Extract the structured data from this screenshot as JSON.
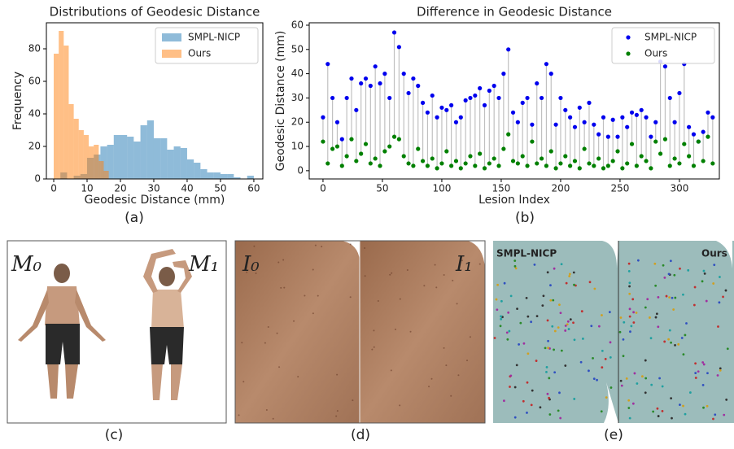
{
  "chart_data": [
    {
      "type": "histogram",
      "title": "Distributions of Geodesic Distance",
      "xlabel": "Geodesic Distance (mm)",
      "ylabel": "Frequency",
      "xlim": [
        -2.2,
        62.7
      ],
      "ylim": [
        0,
        96
      ],
      "xticks": [
        0,
        10,
        20,
        30,
        40,
        50,
        60
      ],
      "yticks": [
        0,
        20,
        40,
        60,
        80
      ],
      "legend": "upper right",
      "series": [
        {
          "name": "SMPL-NICP",
          "color": "#1f77b4",
          "bins": [
            2,
            4,
            6,
            8,
            10,
            12,
            14,
            16,
            18,
            20,
            22,
            24,
            26,
            28,
            30,
            32,
            34,
            36,
            38,
            40,
            42,
            44,
            46,
            48,
            50,
            52,
            54,
            56,
            58,
            60
          ],
          "values": [
            4,
            0,
            2,
            3,
            13,
            15,
            20,
            21,
            27,
            27,
            26,
            23,
            33,
            36,
            25,
            25,
            18,
            20,
            19,
            12,
            10,
            6,
            4,
            4,
            3,
            3,
            1,
            0,
            2
          ]
        },
        {
          "name": "Ours",
          "color": "#ff7f0e",
          "bins": [
            0,
            1.5,
            3,
            4.5,
            6,
            7.5,
            9,
            10.5,
            12,
            13.5,
            15,
            16.5
          ],
          "values": [
            77,
            91,
            82,
            46,
            37,
            30,
            27,
            20,
            21,
            11,
            5
          ]
        }
      ]
    },
    {
      "type": "scatter",
      "title": "Difference in Geodesic Distance",
      "xlabel": "Lesion Index",
      "ylabel": "Geodesic Distance (mm)",
      "xlim": [
        -11.6,
        333.6
      ],
      "ylim": [
        -3.4,
        61
      ],
      "xticks": [
        0,
        50,
        100,
        150,
        200,
        250,
        300
      ],
      "yticks": [
        0,
        10,
        20,
        30,
        40,
        50,
        60
      ],
      "legend": "upper right",
      "stem_color": "#c0c0c0",
      "x": [
        0,
        4,
        8,
        12,
        16,
        20,
        24,
        28,
        32,
        36,
        40,
        44,
        48,
        52,
        56,
        60,
        64,
        68,
        72,
        76,
        80,
        84,
        88,
        92,
        96,
        100,
        104,
        108,
        112,
        116,
        120,
        124,
        128,
        132,
        136,
        140,
        144,
        148,
        152,
        156,
        160,
        164,
        168,
        172,
        176,
        180,
        184,
        188,
        192,
        196,
        200,
        204,
        208,
        212,
        216,
        220,
        224,
        228,
        232,
        236,
        240,
        244,
        248,
        252,
        256,
        260,
        264,
        268,
        272,
        276,
        280,
        284,
        288,
        292,
        296,
        300,
        304,
        308,
        312,
        316,
        320,
        324,
        328
      ],
      "series": [
        {
          "name": "SMPL-NICP",
          "color": "#0000ee",
          "values": [
            22,
            44,
            30,
            20,
            13,
            30,
            38,
            25,
            36,
            38,
            35,
            43,
            36,
            40,
            30,
            57,
            51,
            40,
            32,
            38,
            35,
            28,
            24,
            31,
            22,
            26,
            25,
            27,
            20,
            22,
            29,
            30,
            31,
            34,
            27,
            33,
            35,
            30,
            40,
            50,
            24,
            20,
            28,
            30,
            19,
            36,
            30,
            44,
            40,
            19,
            30,
            25,
            22,
            18,
            26,
            20,
            28,
            19,
            15,
            22,
            14,
            21,
            14,
            22,
            18,
            24,
            23,
            25,
            22,
            14,
            20,
            45,
            43,
            30,
            20,
            32,
            44,
            18,
            15,
            12,
            16,
            24,
            22
          ]
        },
        {
          "name": "Ours",
          "color": "#008000",
          "values": [
            12,
            3,
            9,
            10,
            2,
            6,
            13,
            4,
            7,
            11,
            3,
            5,
            2,
            8,
            10,
            14,
            13,
            6,
            3,
            2,
            9,
            4,
            2,
            5,
            1,
            3,
            8,
            2,
            4,
            1,
            3,
            6,
            2,
            7,
            1,
            3,
            5,
            2,
            9,
            15,
            4,
            3,
            6,
            2,
            12,
            3,
            5,
            2,
            8,
            1,
            3,
            6,
            2,
            4,
            1,
            9,
            3,
            2,
            5,
            1,
            2,
            4,
            8,
            1,
            3,
            11,
            2,
            6,
            4,
            1,
            12,
            7,
            13,
            2,
            5,
            3,
            11,
            6,
            2,
            12,
            4,
            14,
            3
          ]
        }
      ]
    }
  ],
  "captions": [
    "(a)",
    "(b)",
    "(c)",
    "(d)",
    "(e)"
  ],
  "panel_c": {
    "left": "M₀",
    "right": "M₁"
  },
  "panel_d": {
    "left": "I₀",
    "right": "I₁"
  },
  "panel_e": {
    "left": "SMPL-NICP",
    "right": "Ours"
  }
}
